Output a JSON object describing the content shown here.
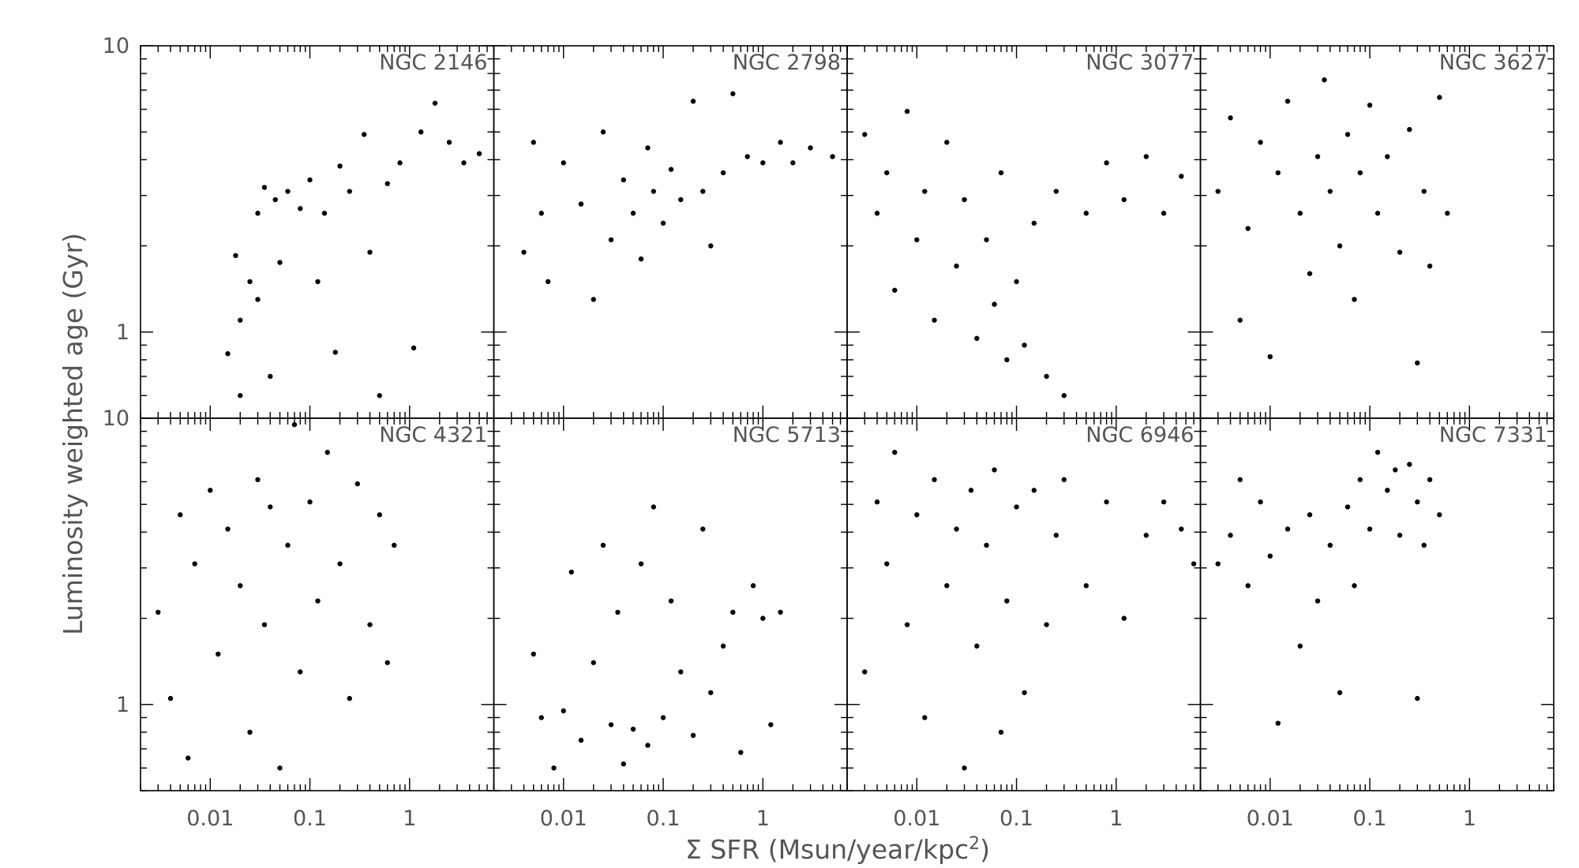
{
  "chart_data": {
    "type": "scatter",
    "layout": "2x4 grid of panels, shared axes",
    "xlabel": "Σ SFR (Msun/year/kpc²)",
    "xlabel_parts": {
      "pre": "Σ SFR (Msun/year/kpc",
      "sup": "2",
      "post": ")"
    },
    "ylabel": "Luminosity weighted age (Gyr)",
    "xscale": "log",
    "yscale": "log",
    "xlim": [
      0.002,
      7
    ],
    "ylim": [
      0.5,
      10
    ],
    "x_ticks": [
      {
        "value": 0.01,
        "label": "0.01"
      },
      {
        "value": 0.1,
        "label": "0.1"
      },
      {
        "value": 1,
        "label": "1"
      }
    ],
    "y_ticks": [
      {
        "value": 10,
        "label": "10"
      },
      {
        "value": 1,
        "label": "1"
      }
    ],
    "grid": false,
    "marker_color": "#000000",
    "panels": [
      {
        "name": "NGC 2146",
        "points": [
          [
            0.015,
            0.84
          ],
          [
            0.018,
            1.85
          ],
          [
            0.02,
            1.1
          ],
          [
            0.02,
            0.6
          ],
          [
            0.025,
            1.5
          ],
          [
            0.03,
            2.6
          ],
          [
            0.03,
            1.3
          ],
          [
            0.035,
            3.2
          ],
          [
            0.04,
            0.7
          ],
          [
            0.045,
            2.9
          ],
          [
            0.05,
            1.75
          ],
          [
            0.06,
            3.1
          ],
          [
            0.08,
            2.7
          ],
          [
            0.1,
            3.4
          ],
          [
            0.12,
            1.5
          ],
          [
            0.14,
            2.6
          ],
          [
            0.18,
            0.85
          ],
          [
            0.2,
            3.8
          ],
          [
            0.25,
            3.1
          ],
          [
            0.35,
            4.9
          ],
          [
            0.4,
            1.9
          ],
          [
            0.5,
            0.6
          ],
          [
            0.6,
            3.3
          ],
          [
            0.8,
            3.9
          ],
          [
            1.1,
            0.88
          ],
          [
            1.3,
            5.0
          ],
          [
            1.8,
            6.3
          ],
          [
            2.5,
            4.6
          ],
          [
            3.5,
            3.9
          ],
          [
            5.0,
            4.2
          ]
        ]
      },
      {
        "name": "NGC 2798",
        "points": [
          [
            0.004,
            1.9
          ],
          [
            0.005,
            4.6
          ],
          [
            0.006,
            2.6
          ],
          [
            0.007,
            1.5
          ],
          [
            0.01,
            3.9
          ],
          [
            0.015,
            2.8
          ],
          [
            0.02,
            1.3
          ],
          [
            0.025,
            5.0
          ],
          [
            0.03,
            2.1
          ],
          [
            0.04,
            3.4
          ],
          [
            0.05,
            2.6
          ],
          [
            0.06,
            1.8
          ],
          [
            0.07,
            4.4
          ],
          [
            0.08,
            3.1
          ],
          [
            0.1,
            2.4
          ],
          [
            0.12,
            3.7
          ],
          [
            0.15,
            2.9
          ],
          [
            0.2,
            6.4
          ],
          [
            0.25,
            3.1
          ],
          [
            0.3,
            2.0
          ],
          [
            0.4,
            3.6
          ],
          [
            0.5,
            6.8
          ],
          [
            0.7,
            4.1
          ],
          [
            1.0,
            3.9
          ],
          [
            1.5,
            4.6
          ],
          [
            2.0,
            3.9
          ],
          [
            3.0,
            4.4
          ],
          [
            5.0,
            4.1
          ]
        ]
      },
      {
        "name": "NGC 3077",
        "points": [
          [
            0.003,
            4.9
          ],
          [
            0.004,
            2.6
          ],
          [
            0.005,
            3.6
          ],
          [
            0.006,
            1.4
          ],
          [
            0.008,
            5.9
          ],
          [
            0.01,
            2.1
          ],
          [
            0.012,
            3.1
          ],
          [
            0.015,
            1.1
          ],
          [
            0.02,
            4.6
          ],
          [
            0.025,
            1.7
          ],
          [
            0.03,
            2.9
          ],
          [
            0.04,
            0.95
          ],
          [
            0.05,
            2.1
          ],
          [
            0.06,
            1.25
          ],
          [
            0.07,
            3.6
          ],
          [
            0.08,
            0.8
          ],
          [
            0.1,
            1.5
          ],
          [
            0.12,
            0.9
          ],
          [
            0.15,
            2.4
          ],
          [
            0.2,
            0.7
          ],
          [
            0.25,
            3.1
          ],
          [
            0.3,
            0.6
          ],
          [
            0.5,
            2.6
          ],
          [
            0.8,
            3.9
          ],
          [
            1.2,
            2.9
          ],
          [
            2.0,
            4.1
          ],
          [
            3.0,
            2.6
          ],
          [
            4.5,
            3.5
          ]
        ]
      },
      {
        "name": "NGC 3627",
        "points": [
          [
            0.003,
            3.1
          ],
          [
            0.004,
            5.6
          ],
          [
            0.005,
            1.1
          ],
          [
            0.006,
            2.3
          ],
          [
            0.008,
            4.6
          ],
          [
            0.01,
            0.82
          ],
          [
            0.012,
            3.6
          ],
          [
            0.015,
            6.4
          ],
          [
            0.02,
            2.6
          ],
          [
            0.025,
            1.6
          ],
          [
            0.03,
            4.1
          ],
          [
            0.035,
            7.6
          ],
          [
            0.04,
            3.1
          ],
          [
            0.05,
            2.0
          ],
          [
            0.06,
            4.9
          ],
          [
            0.07,
            1.3
          ],
          [
            0.08,
            3.6
          ],
          [
            0.1,
            6.2
          ],
          [
            0.12,
            2.6
          ],
          [
            0.15,
            4.1
          ],
          [
            0.2,
            1.9
          ],
          [
            0.25,
            5.1
          ],
          [
            0.3,
            0.78
          ],
          [
            0.35,
            3.1
          ],
          [
            0.4,
            1.7
          ],
          [
            0.5,
            6.6
          ],
          [
            0.6,
            2.6
          ]
        ]
      },
      {
        "name": "NGC 4321",
        "points": [
          [
            0.003,
            2.1
          ],
          [
            0.004,
            1.05
          ],
          [
            0.005,
            4.6
          ],
          [
            0.006,
            0.65
          ],
          [
            0.007,
            3.1
          ],
          [
            0.01,
            5.6
          ],
          [
            0.012,
            1.5
          ],
          [
            0.015,
            4.1
          ],
          [
            0.02,
            2.6
          ],
          [
            0.025,
            0.8
          ],
          [
            0.03,
            6.1
          ],
          [
            0.035,
            1.9
          ],
          [
            0.04,
            4.9
          ],
          [
            0.05,
            0.6
          ],
          [
            0.06,
            3.6
          ],
          [
            0.07,
            9.5
          ],
          [
            0.08,
            1.3
          ],
          [
            0.1,
            5.1
          ],
          [
            0.12,
            2.3
          ],
          [
            0.15,
            7.6
          ],
          [
            0.2,
            3.1
          ],
          [
            0.25,
            1.05
          ],
          [
            0.3,
            5.9
          ],
          [
            0.4,
            1.9
          ],
          [
            0.5,
            4.6
          ],
          [
            0.6,
            1.4
          ],
          [
            0.7,
            3.6
          ]
        ]
      },
      {
        "name": "NGC 5713",
        "points": [
          [
            0.005,
            1.5
          ],
          [
            0.006,
            0.9
          ],
          [
            0.008,
            0.6
          ],
          [
            0.01,
            0.95
          ],
          [
            0.012,
            2.9
          ],
          [
            0.015,
            0.75
          ],
          [
            0.02,
            1.4
          ],
          [
            0.025,
            3.6
          ],
          [
            0.03,
            0.85
          ],
          [
            0.035,
            2.1
          ],
          [
            0.04,
            0.62
          ],
          [
            0.05,
            0.82
          ],
          [
            0.06,
            3.1
          ],
          [
            0.07,
            0.72
          ],
          [
            0.08,
            4.9
          ],
          [
            0.1,
            0.9
          ],
          [
            0.12,
            2.3
          ],
          [
            0.15,
            1.3
          ],
          [
            0.2,
            0.78
          ],
          [
            0.25,
            4.1
          ],
          [
            0.3,
            1.1
          ],
          [
            0.4,
            1.6
          ],
          [
            0.5,
            2.1
          ],
          [
            0.6,
            0.68
          ],
          [
            0.8,
            2.6
          ],
          [
            1.0,
            2.0
          ],
          [
            1.2,
            0.85
          ],
          [
            1.5,
            2.1
          ]
        ]
      },
      {
        "name": "NGC 6946",
        "points": [
          [
            0.003,
            1.3
          ],
          [
            0.004,
            5.1
          ],
          [
            0.005,
            3.1
          ],
          [
            0.006,
            7.6
          ],
          [
            0.008,
            1.9
          ],
          [
            0.01,
            4.6
          ],
          [
            0.012,
            0.9
          ],
          [
            0.015,
            6.1
          ],
          [
            0.02,
            2.6
          ],
          [
            0.025,
            4.1
          ],
          [
            0.03,
            0.6
          ],
          [
            0.035,
            5.6
          ],
          [
            0.04,
            1.6
          ],
          [
            0.05,
            3.6
          ],
          [
            0.06,
            6.6
          ],
          [
            0.07,
            0.8
          ],
          [
            0.08,
            2.3
          ],
          [
            0.1,
            4.9
          ],
          [
            0.12,
            1.1
          ],
          [
            0.15,
            5.6
          ],
          [
            0.2,
            1.9
          ],
          [
            0.25,
            3.9
          ],
          [
            0.3,
            6.1
          ],
          [
            0.5,
            2.6
          ],
          [
            0.8,
            5.1
          ],
          [
            1.2,
            2.0
          ],
          [
            2.0,
            3.9
          ],
          [
            3.0,
            5.1
          ],
          [
            4.5,
            4.1
          ],
          [
            6.0,
            3.1
          ]
        ]
      },
      {
        "name": "NGC 7331",
        "points": [
          [
            0.003,
            3.1
          ],
          [
            0.004,
            3.9
          ],
          [
            0.005,
            6.1
          ],
          [
            0.006,
            2.6
          ],
          [
            0.008,
            5.1
          ],
          [
            0.01,
            3.3
          ],
          [
            0.012,
            0.86
          ],
          [
            0.015,
            4.1
          ],
          [
            0.02,
            1.6
          ],
          [
            0.025,
            4.6
          ],
          [
            0.03,
            2.3
          ],
          [
            0.04,
            3.6
          ],
          [
            0.05,
            1.1
          ],
          [
            0.06,
            4.9
          ],
          [
            0.07,
            2.6
          ],
          [
            0.08,
            6.1
          ],
          [
            0.1,
            4.1
          ],
          [
            0.12,
            7.6
          ],
          [
            0.15,
            5.6
          ],
          [
            0.18,
            6.6
          ],
          [
            0.2,
            3.9
          ],
          [
            0.25,
            6.9
          ],
          [
            0.3,
            5.1
          ],
          [
            0.35,
            3.6
          ],
          [
            0.4,
            6.1
          ],
          [
            0.5,
            4.6
          ],
          [
            0.3,
            1.05
          ]
        ]
      }
    ]
  }
}
